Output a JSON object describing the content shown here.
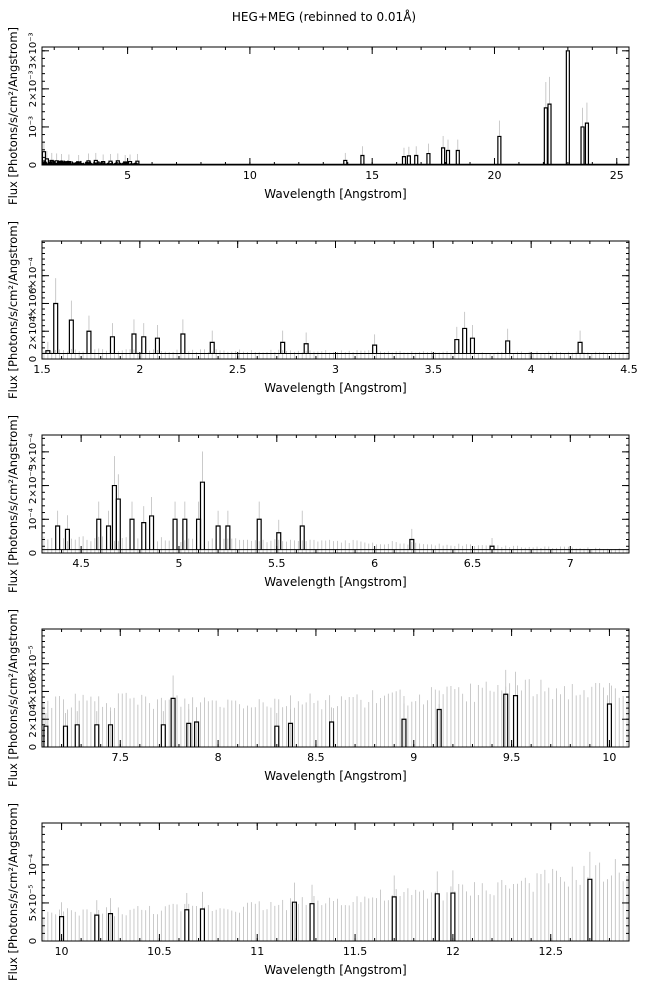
{
  "title": "HEG+MEG (rebinned to 0.01Å)",
  "style": {
    "spectrum_color": "#000000",
    "error_bar_color": "#bdbdbd",
    "frame_color": "#000000"
  },
  "chart_data": [
    {
      "type": "line",
      "xlabel": "Wavelength [Angstrom]",
      "ylabel": "Flux [Photons/s/cm²/Angstrom]",
      "xlim": [
        1.5,
        25.5
      ],
      "ylim": [
        0,
        0.0031
      ],
      "xticks": [
        5,
        10,
        15,
        20,
        25
      ],
      "xtick_labels": [
        "5",
        "10",
        "15",
        "20",
        "25"
      ],
      "yticks": [
        0.001,
        0.002,
        0.003
      ],
      "ytick_labels": [
        "10⁻³",
        "2×10⁻³",
        "3×10⁻³"
      ],
      "baseline": 2e-05,
      "continuum": [
        [
          1.5,
          7e-05
        ],
        [
          6,
          3e-05
        ],
        [
          25.5,
          1e-05
        ]
      ],
      "bins": [
        {
          "x": 1.58,
          "y": 0.00035
        },
        {
          "x": 1.7,
          "y": 0.00016
        },
        {
          "x": 1.9,
          "y": 0.00012
        },
        {
          "x": 2.1,
          "y": 0.00011
        },
        {
          "x": 2.3,
          "y": 0.0001
        },
        {
          "x": 2.6,
          "y": 9e-05
        },
        {
          "x": 3.0,
          "y": 8e-05
        },
        {
          "x": 3.4,
          "y": 0.00011
        },
        {
          "x": 3.7,
          "y": 0.00012
        },
        {
          "x": 4.0,
          "y": 9e-05
        },
        {
          "x": 4.3,
          "y": 0.0001
        },
        {
          "x": 4.6,
          "y": 0.00011
        },
        {
          "x": 4.9,
          "y": 8e-05
        },
        {
          "x": 5.1,
          "y": 9e-05
        },
        {
          "x": 5.4,
          "y": 0.0001
        },
        {
          "x": 13.9,
          "y": 0.00012
        },
        {
          "x": 14.6,
          "y": 0.00025
        },
        {
          "x": 16.3,
          "y": 0.00022
        },
        {
          "x": 16.5,
          "y": 0.00024
        },
        {
          "x": 16.8,
          "y": 0.00025
        },
        {
          "x": 17.3,
          "y": 0.0003
        },
        {
          "x": 17.9,
          "y": 0.00045
        },
        {
          "x": 18.1,
          "y": 0.00038
        },
        {
          "x": 18.5,
          "y": 0.00038
        },
        {
          "x": 20.2,
          "y": 0.00075
        },
        {
          "x": 22.1,
          "y": 0.0015
        },
        {
          "x": 22.25,
          "y": 0.0016
        },
        {
          "x": 23.0,
          "y": 0.003
        },
        {
          "x": 23.6,
          "y": 0.001
        },
        {
          "x": 23.78,
          "y": 0.0011
        }
      ]
    },
    {
      "type": "line",
      "xlabel": "Wavelength [Angstrom]",
      "ylabel": "Flux [Photons/s/cm²/Angstrom]",
      "xlim": [
        1.5,
        4.5
      ],
      "ylim": [
        0,
        0.00085
      ],
      "xticks": [
        1.5,
        2,
        2.5,
        3,
        3.5,
        4,
        4.5
      ],
      "xtick_labels": [
        "1.5",
        "2",
        "2.5",
        "3",
        "3.5",
        "4",
        "4.5"
      ],
      "yticks": [
        0.0002,
        0.0004,
        0.0006
      ],
      "ytick_labels": [
        "2×10⁻⁴",
        "4×10⁻⁴",
        "6×10⁻⁴"
      ],
      "baseline": 4e-05,
      "continuum": [
        [
          1.5,
          6e-05
        ],
        [
          4.5,
          4e-05
        ]
      ],
      "bins": [
        {
          "x": 1.53,
          "y": 6e-05
        },
        {
          "x": 1.57,
          "y": 0.0004
        },
        {
          "x": 1.65,
          "y": 0.00028
        },
        {
          "x": 1.74,
          "y": 0.0002
        },
        {
          "x": 1.86,
          "y": 0.00016
        },
        {
          "x": 1.97,
          "y": 0.00018
        },
        {
          "x": 2.02,
          "y": 0.00016
        },
        {
          "x": 2.09,
          "y": 0.00015
        },
        {
          "x": 2.22,
          "y": 0.00018
        },
        {
          "x": 2.37,
          "y": 0.00012
        },
        {
          "x": 2.73,
          "y": 0.00012
        },
        {
          "x": 2.85,
          "y": 0.00011
        },
        {
          "x": 3.2,
          "y": 0.0001
        },
        {
          "x": 3.62,
          "y": 0.00014
        },
        {
          "x": 3.66,
          "y": 0.00022
        },
        {
          "x": 3.7,
          "y": 0.00015
        },
        {
          "x": 3.88,
          "y": 0.00013
        },
        {
          "x": 4.25,
          "y": 0.00012
        }
      ]
    },
    {
      "type": "line",
      "xlabel": "Wavelength [Angstrom]",
      "ylabel": "Flux [Photons/s/cm²/Angstrom]",
      "xlim": [
        4.3,
        7.3
      ],
      "ylim": [
        0,
        0.00035
      ],
      "xticks": [
        4.5,
        5,
        5.5,
        6,
        6.5,
        7
      ],
      "xtick_labels": [
        "4.5",
        "5",
        "5.5",
        "6",
        "6.5",
        "7"
      ],
      "yticks": [
        0.0001,
        0.0002,
        0.0003
      ],
      "ytick_labels": [
        "10⁻⁴",
        "2×10⁻⁴",
        "3×10⁻⁴"
      ],
      "baseline": 1e-05,
      "continuum": [
        [
          4.3,
          4e-05
        ],
        [
          5.9,
          3e-05
        ],
        [
          7.3,
          1e-05
        ]
      ],
      "bins": [
        {
          "x": 4.38,
          "y": 8e-05
        },
        {
          "x": 4.43,
          "y": 7e-05
        },
        {
          "x": 4.59,
          "y": 0.0001
        },
        {
          "x": 4.64,
          "y": 8e-05
        },
        {
          "x": 4.67,
          "y": 0.0002
        },
        {
          "x": 4.69,
          "y": 0.00016
        },
        {
          "x": 4.76,
          "y": 0.0001
        },
        {
          "x": 4.82,
          "y": 9e-05
        },
        {
          "x": 4.86,
          "y": 0.00011
        },
        {
          "x": 4.98,
          "y": 0.0001
        },
        {
          "x": 5.03,
          "y": 0.0001
        },
        {
          "x": 5.1,
          "y": 0.0001
        },
        {
          "x": 5.12,
          "y": 0.00021
        },
        {
          "x": 5.2,
          "y": 8e-05
        },
        {
          "x": 5.25,
          "y": 8e-05
        },
        {
          "x": 5.41,
          "y": 0.0001
        },
        {
          "x": 5.51,
          "y": 6e-05
        },
        {
          "x": 5.63,
          "y": 8e-05
        },
        {
          "x": 6.19,
          "y": 4e-05
        },
        {
          "x": 6.6,
          "y": 2e-05
        }
      ]
    },
    {
      "type": "line",
      "xlabel": "Wavelength [Angstrom]",
      "ylabel": "Flux [Photons/s/cm²/Angstrom]",
      "xlim": [
        7.1,
        10.1
      ],
      "ylim": [
        0,
        8.5e-05
      ],
      "xticks": [
        7.5,
        8,
        8.5,
        9,
        9.5,
        10
      ],
      "xtick_labels": [
        "7.5",
        "8",
        "8.5",
        "9",
        "9.5",
        "10"
      ],
      "yticks": [
        2e-05,
        4e-05,
        6e-05
      ],
      "ytick_labels": [
        "2×10⁻⁵",
        "4×10⁻⁵",
        "6×10⁻⁵"
      ],
      "baseline": 0.0,
      "continuum": [
        [
          7.1,
          3e-05
        ],
        [
          8.5,
          3e-05
        ],
        [
          9.2,
          3.4e-05
        ],
        [
          9.5,
          3.9e-05
        ],
        [
          10.1,
          3.6e-05
        ]
      ],
      "bins": [
        {
          "x": 7.12,
          "y": 1.5e-05
        },
        {
          "x": 7.22,
          "y": 1.5e-05
        },
        {
          "x": 7.28,
          "y": 1.6e-05
        },
        {
          "x": 7.38,
          "y": 1.6e-05
        },
        {
          "x": 7.45,
          "y": 1.6e-05
        },
        {
          "x": 7.72,
          "y": 1.6e-05
        },
        {
          "x": 7.77,
          "y": 3.5e-05
        },
        {
          "x": 7.85,
          "y": 1.7e-05
        },
        {
          "x": 7.89,
          "y": 1.8e-05
        },
        {
          "x": 8.3,
          "y": 1.5e-05
        },
        {
          "x": 8.37,
          "y": 1.7e-05
        },
        {
          "x": 8.58,
          "y": 1.8e-05
        },
        {
          "x": 8.95,
          "y": 2e-05
        },
        {
          "x": 9.13,
          "y": 2.7e-05
        },
        {
          "x": 9.47,
          "y": 3.8e-05
        },
        {
          "x": 9.52,
          "y": 3.7e-05
        },
        {
          "x": 10.0,
          "y": 3.1e-05
        }
      ]
    },
    {
      "type": "line",
      "xlabel": "Wavelength [Angstrom]",
      "ylabel": "Flux [Photons/s/cm²/Angstrom]",
      "xlim": [
        9.9,
        12.9
      ],
      "ylim": [
        0,
        0.000155
      ],
      "xticks": [
        10,
        10.5,
        11,
        11.5,
        12,
        12.5
      ],
      "xtick_labels": [
        "10",
        "10.5",
        "11",
        "11.5",
        "12",
        "12.5"
      ],
      "yticks": [
        5e-05,
        0.0001
      ],
      "ytick_labels": [
        "5×10⁻⁵",
        "10⁻⁴"
      ],
      "baseline": 0.0,
      "continuum": [
        [
          9.9,
          3.2e-05
        ],
        [
          11,
          4.2e-05
        ],
        [
          12,
          5.8e-05
        ],
        [
          12.9,
          8.5e-05
        ]
      ],
      "bins": [
        {
          "x": 10.0,
          "y": 3.2e-05
        },
        {
          "x": 10.18,
          "y": 3.4e-05
        },
        {
          "x": 10.25,
          "y": 3.6e-05
        },
        {
          "x": 10.64,
          "y": 4.1e-05
        },
        {
          "x": 10.72,
          "y": 4.2e-05
        },
        {
          "x": 11.19,
          "y": 5.1e-05
        },
        {
          "x": 11.28,
          "y": 4.9e-05
        },
        {
          "x": 11.7,
          "y": 5.8e-05
        },
        {
          "x": 11.92,
          "y": 6.2e-05
        },
        {
          "x": 12.0,
          "y": 6.3e-05
        },
        {
          "x": 12.7,
          "y": 8.1e-05
        }
      ]
    }
  ]
}
